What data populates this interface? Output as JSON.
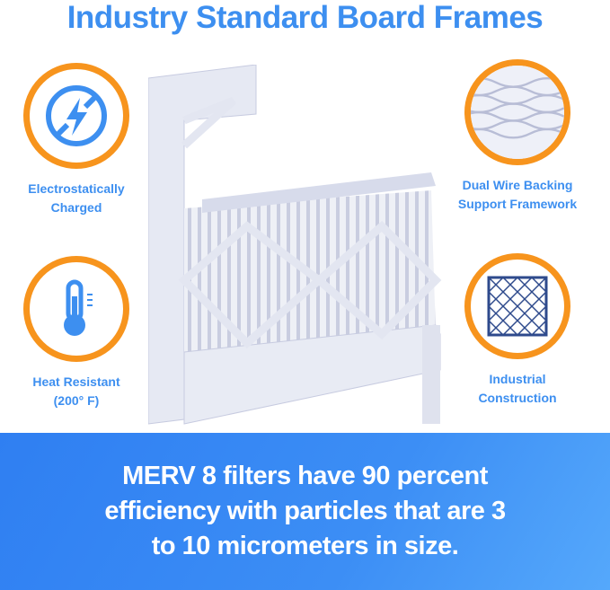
{
  "title": "Industry Standard Board Frames",
  "features": [
    {
      "icon": "no-static-lightning-icon",
      "line1": "Electrostatically",
      "line2": "Charged"
    },
    {
      "icon": "thermometer-icon",
      "line1": "Heat Resistant",
      "line2": "(200° F)"
    },
    {
      "icon": "wire-mesh-icon",
      "line1": "Dual Wire Backing",
      "line2": "Support Framework"
    },
    {
      "icon": "lattice-grid-icon",
      "line1": "Industrial",
      "line2": "Construction"
    }
  ],
  "banner": {
    "line1": "MERV 8 filters have 90 percent",
    "line2": "efficiency with particles that are 3",
    "line3": "to 10 micrometers in size."
  },
  "colors": {
    "accent_blue": "#3d8ff0",
    "ring_orange": "#f7941d",
    "banner_blue": "#2f7ff2"
  }
}
